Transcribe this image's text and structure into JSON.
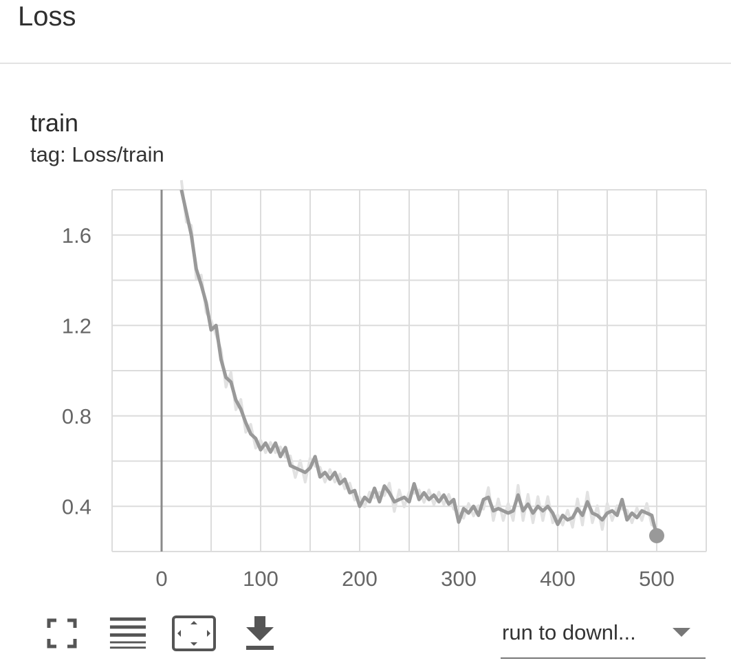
{
  "section": {
    "title": "Loss"
  },
  "card": {
    "title": "train",
    "tag": "tag: Loss/train"
  },
  "toolbar": {
    "icons": [
      "fullscreen-icon",
      "toggle-log-scale-icon",
      "fit-domain-icon",
      "download-icon"
    ],
    "run_select_value": "run to downl..."
  },
  "colors": {
    "line": "#999999",
    "raw_line": "#e2e2e2",
    "grid": "#dcdcdc",
    "axis_zero": "#8a8a8a"
  },
  "chart_data": {
    "type": "line",
    "title": "train",
    "xlabel": "",
    "ylabel": "",
    "xlim": [
      -50,
      550
    ],
    "ylim": [
      0.2,
      1.8
    ],
    "x_ticks": [
      0,
      100,
      200,
      300,
      400,
      500
    ],
    "y_ticks": [
      0.4,
      0.8,
      1.2,
      1.6
    ],
    "grid": true,
    "series": [
      {
        "x": [
          20,
          25,
          30,
          35,
          40,
          45,
          50,
          55,
          60,
          65,
          70,
          75,
          80,
          85,
          90,
          95,
          100,
          105,
          110,
          115,
          120,
          125,
          130,
          135,
          140,
          145,
          150,
          155,
          160,
          165,
          170,
          175,
          180,
          185,
          190,
          195,
          200,
          205,
          210,
          215,
          220,
          225,
          230,
          235,
          240,
          245,
          250,
          255,
          260,
          265,
          270,
          275,
          280,
          285,
          290,
          295,
          300,
          305,
          310,
          315,
          320,
          325,
          330,
          335,
          340,
          345,
          350,
          355,
          360,
          365,
          370,
          375,
          380,
          385,
          390,
          395,
          400,
          405,
          410,
          415,
          420,
          425,
          430,
          435,
          440,
          445,
          450,
          455,
          460,
          465,
          470,
          475,
          480,
          485,
          490,
          495,
          500
        ],
        "y": [
          1.8,
          1.7,
          1.6,
          1.45,
          1.38,
          1.3,
          1.18,
          1.2,
          1.05,
          0.97,
          0.95,
          0.87,
          0.83,
          0.77,
          0.72,
          0.7,
          0.65,
          0.68,
          0.64,
          0.68,
          0.62,
          0.66,
          0.58,
          0.57,
          0.56,
          0.55,
          0.57,
          0.62,
          0.53,
          0.55,
          0.52,
          0.55,
          0.5,
          0.52,
          0.46,
          0.47,
          0.4,
          0.44,
          0.42,
          0.48,
          0.42,
          0.49,
          0.46,
          0.42,
          0.43,
          0.44,
          0.42,
          0.5,
          0.43,
          0.46,
          0.43,
          0.45,
          0.42,
          0.45,
          0.41,
          0.43,
          0.33,
          0.39,
          0.37,
          0.4,
          0.36,
          0.43,
          0.44,
          0.38,
          0.39,
          0.38,
          0.37,
          0.38,
          0.45,
          0.38,
          0.41,
          0.37,
          0.4,
          0.38,
          0.4,
          0.37,
          0.32,
          0.36,
          0.34,
          0.35,
          0.39,
          0.36,
          0.42,
          0.37,
          0.36,
          0.34,
          0.37,
          0.38,
          0.36,
          0.43,
          0.34,
          0.37,
          0.35,
          0.38,
          0.37,
          0.36,
          0.27
        ]
      }
    ]
  }
}
